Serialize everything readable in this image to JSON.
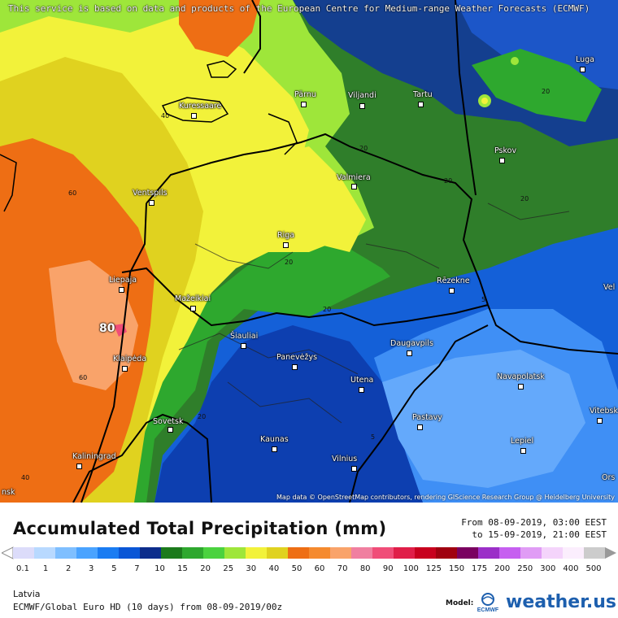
{
  "banner": "This service is based on data and products of the European Centre for Medium-range Weather Forecasts (ECMWF)",
  "cities": [
    {
      "name": "Kuressaare"
    },
    {
      "name": "Pärnu"
    },
    {
      "name": "Viljandi"
    },
    {
      "name": "Tartu"
    },
    {
      "name": "Luga"
    },
    {
      "name": "Pskov"
    },
    {
      "name": "Valmiera"
    },
    {
      "name": "Ventspils"
    },
    {
      "name": "Riga"
    },
    {
      "name": "Liepaja"
    },
    {
      "name": "Mažeikiai"
    },
    {
      "name": "Rēzekne"
    },
    {
      "name": "Šiauliai"
    },
    {
      "name": "Klaipėda"
    },
    {
      "name": "Panevėžys"
    },
    {
      "name": "Daugavpils"
    },
    {
      "name": "Utena"
    },
    {
      "name": "Navapolatsk"
    },
    {
      "name": "Vitebsk"
    },
    {
      "name": "Sovetsk"
    },
    {
      "name": "Pastavy"
    },
    {
      "name": "Kaunas"
    },
    {
      "name": "Lepiel"
    },
    {
      "name": "Kaliningrad"
    },
    {
      "name": "Vilnius"
    },
    {
      "name": "Vel"
    },
    {
      "name": "Ors"
    },
    {
      "name": "nsk"
    }
  ],
  "contour_labels": [
    "40",
    "20",
    "20",
    "20",
    "20",
    "60",
    "60",
    "20",
    "20",
    "5",
    "5",
    "40",
    "20"
  ],
  "max_label": "80",
  "map_credits": "Map data © OpenStreetMap contributors, rendering GIScience Research Group @ Heidelberg University",
  "title": "Accumulated Total Precipitation (mm)",
  "period": {
    "from": "From 08-09-2019, 03:00 EEST",
    "to": "to 15-09-2019, 21:00 EEST"
  },
  "scale": {
    "colors": [
      "#dcdcfa",
      "#b8d9ff",
      "#7fbfff",
      "#4aa3ff",
      "#1a7cf2",
      "#0a56d6",
      "#0c2d8c",
      "#1c7a1c",
      "#2ea82e",
      "#4bd23f",
      "#9ee63a",
      "#f2f23a",
      "#e0d21f",
      "#ee6e14",
      "#f58a2e",
      "#f9a36a",
      "#f07fa0",
      "#f04d78",
      "#e01e48",
      "#c8001e",
      "#a00010",
      "#7a0060",
      "#9b2fc8",
      "#c65ff0",
      "#e09cf5",
      "#f4d4fb",
      "#fbeefd",
      "#cccccc"
    ],
    "ticks": [
      "0.1",
      "1",
      "2",
      "3",
      "5",
      "7",
      "10",
      "15",
      "20",
      "25",
      "30",
      "40",
      "50",
      "60",
      "70",
      "80",
      "90",
      "100",
      "125",
      "150",
      "175",
      "200",
      "250",
      "300",
      "400",
      "500"
    ]
  },
  "region": "Latvia",
  "model_line": "ECMWF/Global Euro HD (10 days) from 08-09-2019/00z",
  "model_label": "Model:",
  "brand": "weather.us",
  "logo_text": "ECMWF"
}
